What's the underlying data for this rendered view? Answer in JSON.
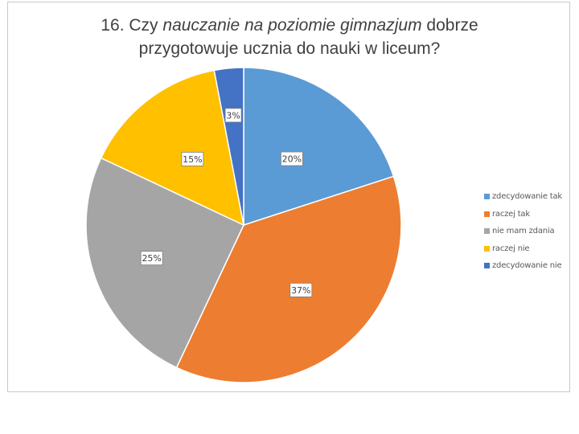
{
  "chart_data": {
    "type": "pie",
    "title_parts": [
      {
        "text": "16. Czy ",
        "italic": false
      },
      {
        "text": "nauczanie na poziomie gimnazjum",
        "italic": true
      },
      {
        "text": " dobrze",
        "italic": false
      },
      {
        "text": "przygotowuje ucznia do nauki w liceum?",
        "italic": false,
        "newline": true
      }
    ],
    "slices": [
      {
        "name": "zdecydowanie tak",
        "value": 20,
        "label": "20%",
        "color": "#5b9bd5"
      },
      {
        "name": "raczej tak",
        "value": 37,
        "label": "37%",
        "color": "#ed7d31"
      },
      {
        "name": "nie mam zdania",
        "value": 25,
        "label": "25%",
        "color": "#a5a5a5"
      },
      {
        "name": "raczej nie",
        "value": 15,
        "label": "15%",
        "color": "#ffc000"
      },
      {
        "name": "zdecydowanie nie",
        "value": 3,
        "label": "3%",
        "color": "#4472c4"
      }
    ],
    "legend_position": "right",
    "start_angle": "12 o'clock",
    "direction": "clockwise"
  }
}
